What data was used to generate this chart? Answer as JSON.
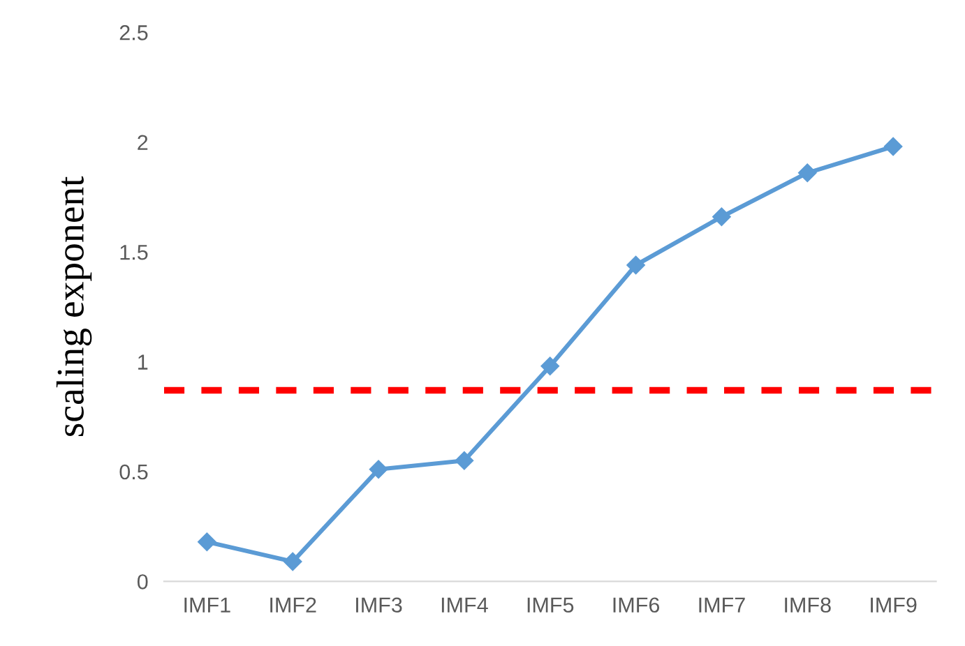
{
  "chart_data": {
    "type": "line",
    "ylabel": "scaling exponent",
    "categories": [
      "IMF1",
      "IMF2",
      "IMF3",
      "IMF4",
      "IMF5",
      "IMF6",
      "IMF7",
      "IMF8",
      "IMF9"
    ],
    "series": [
      {
        "color": "#5b9bd5",
        "values": [
          0.18,
          0.09,
          0.51,
          0.55,
          0.98,
          1.44,
          1.66,
          1.86,
          1.98
        ]
      }
    ],
    "marker": "diamond",
    "line_style": "solid",
    "ylim": [
      0,
      2.5
    ],
    "yticks": [
      0,
      0.5,
      1,
      1.5,
      2,
      2.5
    ],
    "ref_lines": [
      {
        "axis": "y",
        "value": 0.87,
        "color": "#ff0000",
        "line_style": "dashed"
      }
    ],
    "grid": false,
    "legend": false
  }
}
